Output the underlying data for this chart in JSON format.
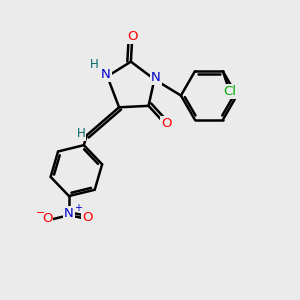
{
  "bg_color": "#ebebeb",
  "bond_color": "#000000",
  "bond_width": 1.8,
  "atom_colors": {
    "N": "#0000cc",
    "O": "#ff0000",
    "Cl": "#00aa00",
    "H": "#006666",
    "C": "#000000",
    "Nplus": "#0000cc",
    "Ominus": "#ff0000"
  },
  "font_size": 9.5,
  "fig_size": [
    3.0,
    3.0
  ],
  "dpi": 100
}
